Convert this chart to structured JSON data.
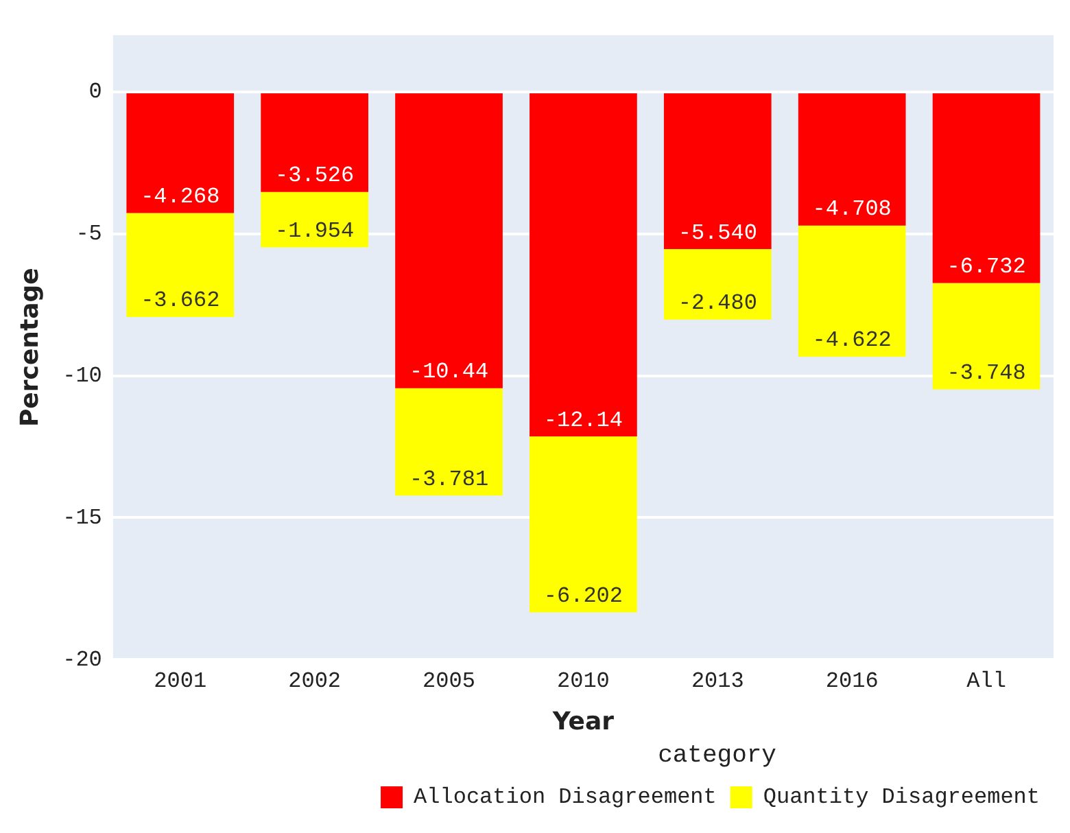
{
  "chart_data": {
    "type": "bar",
    "stacked": true,
    "xlabel": "Year",
    "ylabel": "Percentage",
    "legend_title": "category",
    "legend": "bottom",
    "grid": "y",
    "data_labels": true,
    "categories": [
      "2001",
      "2002",
      "2005",
      "2010",
      "2013",
      "2016",
      "All"
    ],
    "series": [
      {
        "name": "Allocation Disagreement",
        "color": "#ff0000",
        "values": [
          -4.268,
          -3.526,
          -10.44,
          -12.14,
          -5.54,
          -4.708,
          -6.732
        ],
        "value_labels": [
          "-4.268",
          "-3.526",
          "-10.44",
          "-12.14",
          "-5.540",
          "-4.708",
          "-6.732"
        ]
      },
      {
        "name": "Quantity Disagreement",
        "color": "#ffff00",
        "values": [
          -3.662,
          -1.954,
          -3.781,
          -6.202,
          -2.48,
          -4.622,
          -3.748
        ],
        "value_labels": [
          "-3.662",
          "-1.954",
          "-3.781",
          "-6.202",
          "-2.480",
          "-4.622",
          "-3.748"
        ]
      }
    ],
    "ylim": [
      -20,
      2
    ],
    "yticks": [
      0,
      -5,
      -10,
      -15,
      -20
    ]
  }
}
